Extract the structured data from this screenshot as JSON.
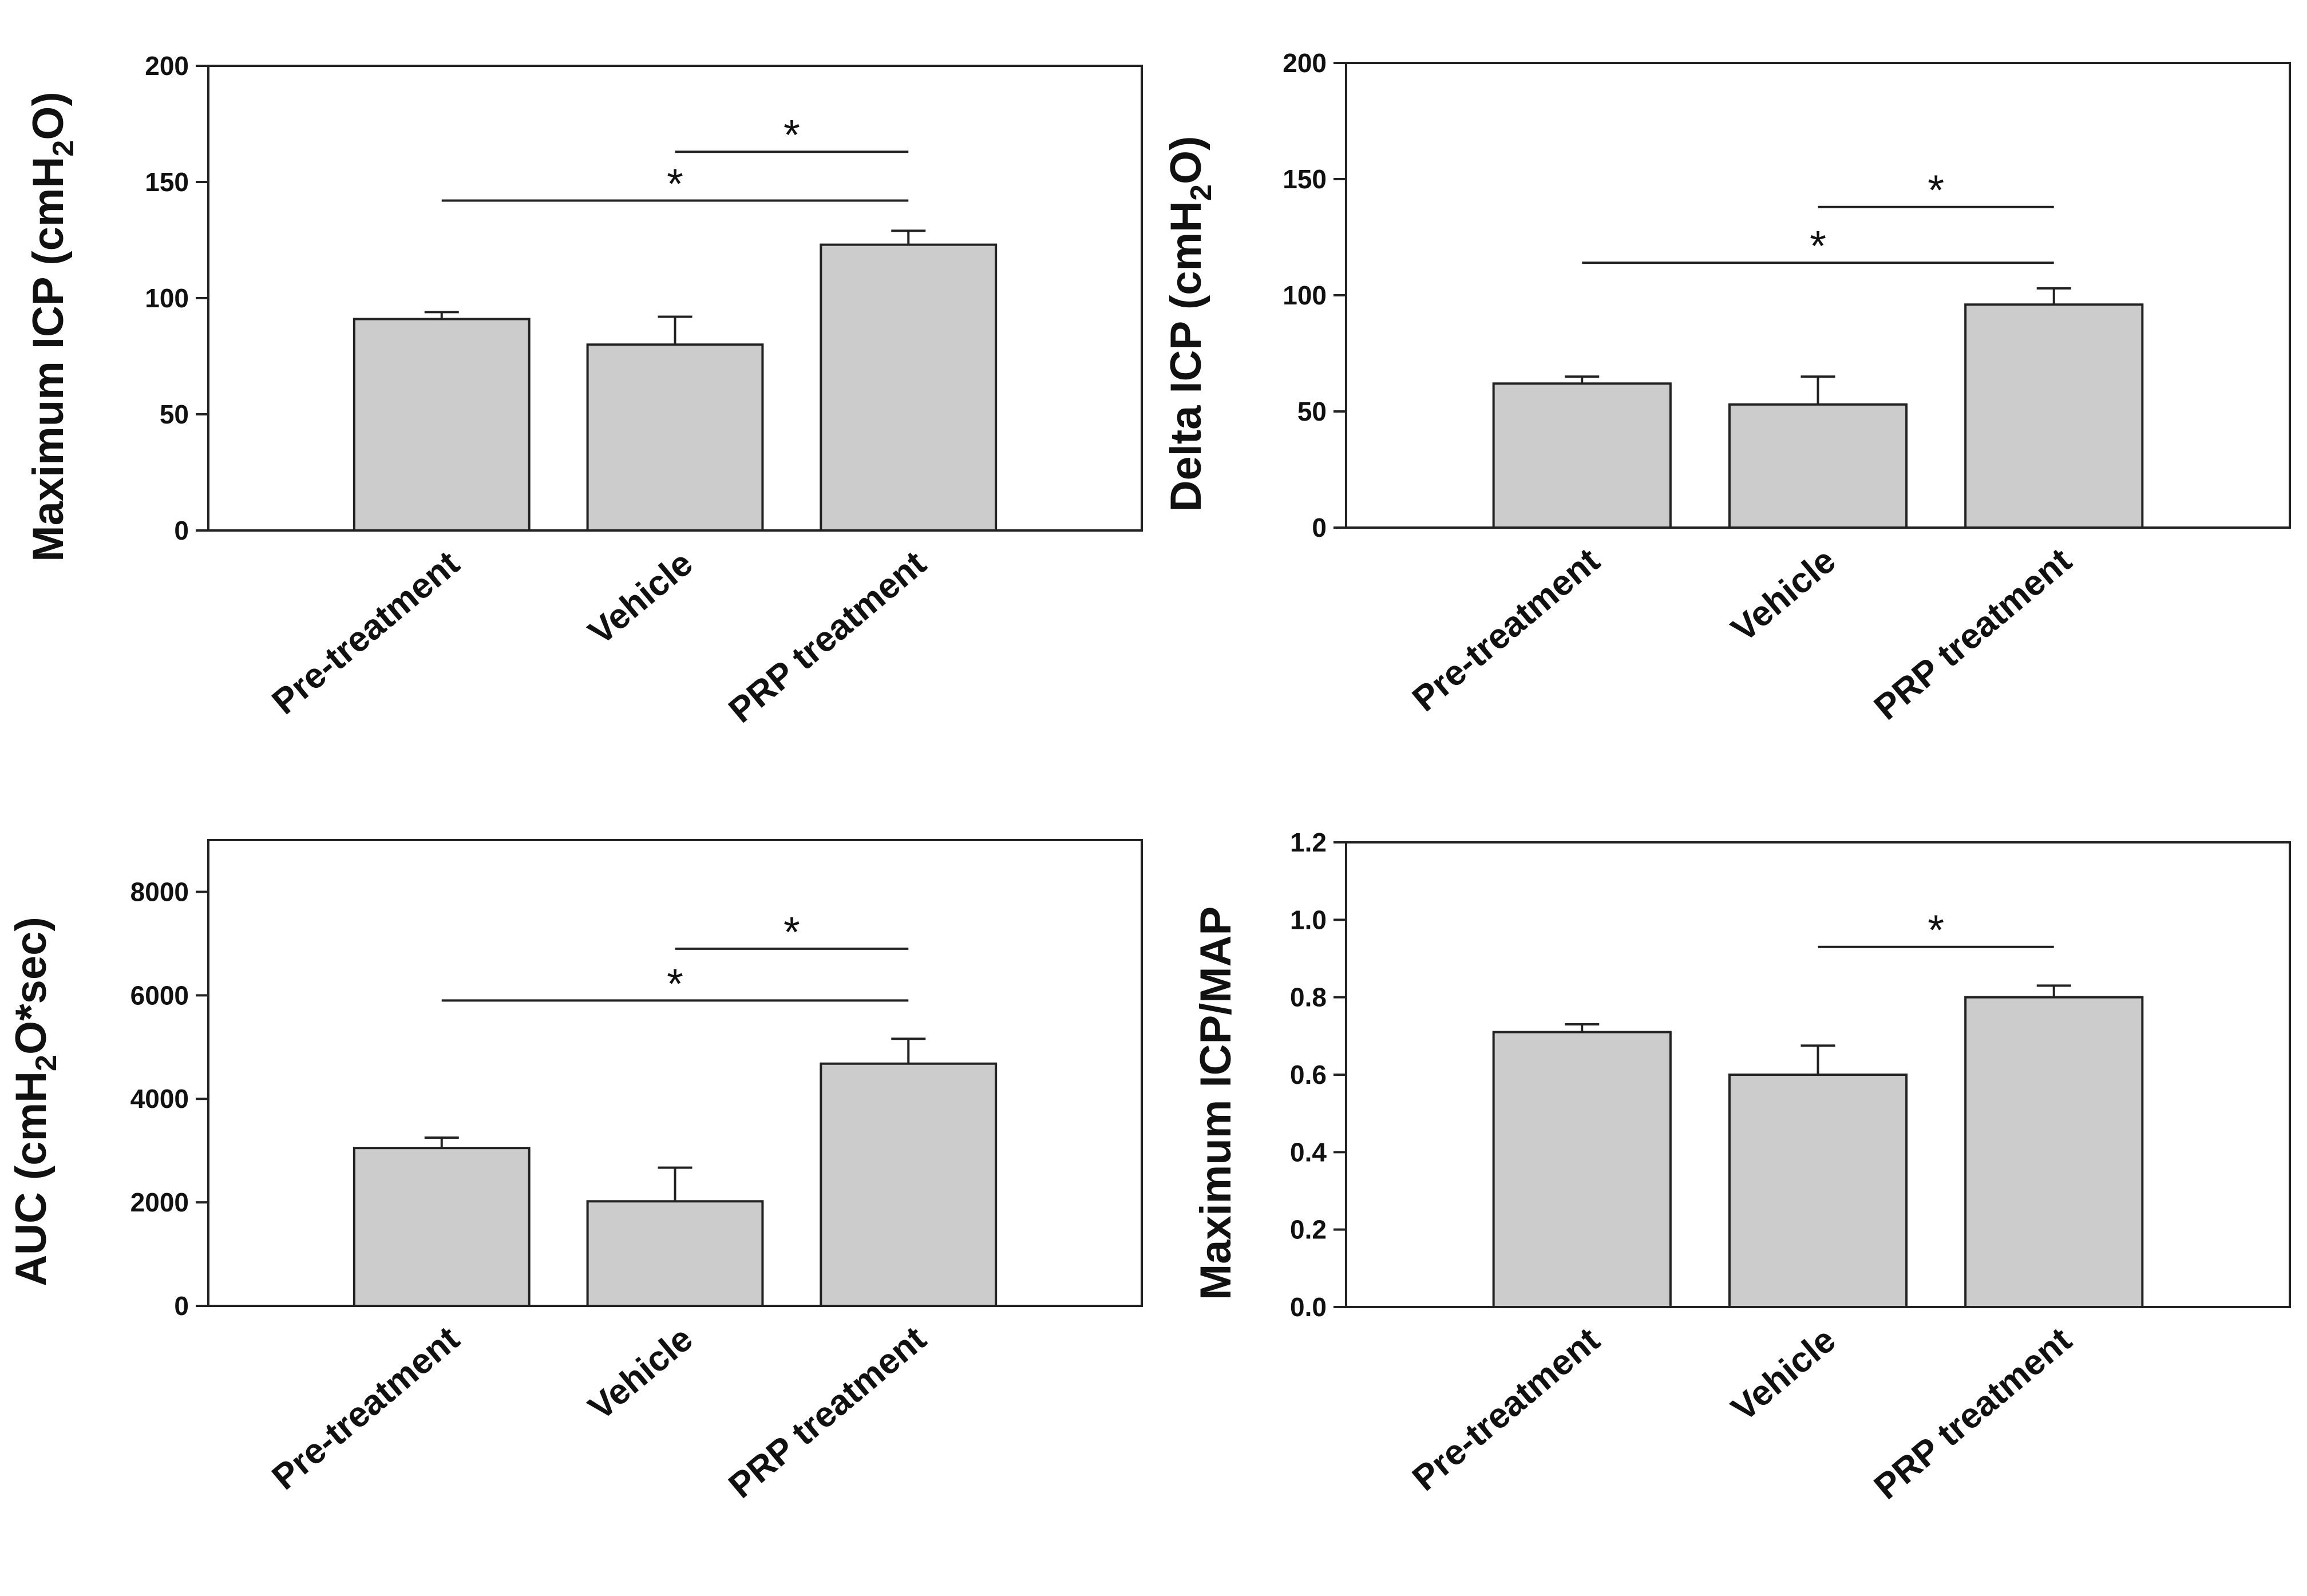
{
  "chart_data": [
    {
      "type": "bar",
      "categories": [
        "Pre-treatment",
        "Vehicle",
        "PRP treatment"
      ],
      "values": [
        91,
        80,
        123
      ],
      "errors": [
        3,
        12,
        6
      ],
      "ylabel": "Maximum ICP (cmH2O)",
      "ylabel_main": "Maximum ICP (cmH",
      "ylabel_sub": "2",
      "ylabel_end": "O)",
      "ylim": [
        0,
        200
      ],
      "yticks": [
        "0",
        "50",
        "100",
        "150",
        "200"
      ],
      "significance": [
        {
          "from": 1,
          "to": 2,
          "level": 163,
          "label": "*"
        },
        {
          "from": 0,
          "to": 2,
          "level": 142,
          "label": "*"
        }
      ]
    },
    {
      "type": "bar",
      "categories": [
        "Pre-treatment",
        "Vehicle",
        "PRP treatment"
      ],
      "values": [
        62,
        53,
        96
      ],
      "errors": [
        3,
        12,
        7
      ],
      "ylabel": "Delta ICP (cmH2O)",
      "ylabel_main": "Delta ICP (cmH",
      "ylabel_sub": "2",
      "ylabel_end": "O)",
      "ylim": [
        0,
        200
      ],
      "yticks": [
        "0",
        "50",
        "100",
        "150",
        "200"
      ],
      "significance": [
        {
          "from": 1,
          "to": 2,
          "level": 138,
          "label": "*"
        },
        {
          "from": 0,
          "to": 2,
          "level": 114,
          "label": "*"
        }
      ]
    },
    {
      "type": "bar",
      "categories": [
        "Pre-treatment",
        "Vehicle",
        "PRP treatment"
      ],
      "values": [
        3050,
        2020,
        4680
      ],
      "errors": [
        200,
        650,
        480
      ],
      "ylabel": "AUC (cmH2O*sec)",
      "ylabel_main": "AUC (cmH",
      "ylabel_sub": "2",
      "ylabel_end": "O*sec)",
      "ylim": [
        0,
        9000
      ],
      "yticks": [
        "0",
        "2000",
        "4000",
        "6000",
        "8000"
      ],
      "significance": [
        {
          "from": 1,
          "to": 2,
          "level": 6900,
          "label": "*"
        },
        {
          "from": 0,
          "to": 2,
          "level": 5900,
          "label": "*"
        }
      ]
    },
    {
      "type": "bar",
      "categories": [
        "Pre-treatment",
        "Vehicle",
        "PRP treatment"
      ],
      "values": [
        0.71,
        0.6,
        0.8
      ],
      "errors": [
        0.02,
        0.075,
        0.03
      ],
      "ylabel": "Maximum ICP/MAP",
      "ylabel_main": "Maximum ICP/MAP",
      "ylabel_sub": "",
      "ylabel_end": "",
      "ylim": [
        0,
        1.2
      ],
      "yticks": [
        "0.0",
        "0.2",
        "0.4",
        "0.6",
        "0.8",
        "1.0",
        "1.2"
      ],
      "significance": [
        {
          "from": 1,
          "to": 2,
          "level": 0.93,
          "label": "*"
        }
      ]
    }
  ]
}
